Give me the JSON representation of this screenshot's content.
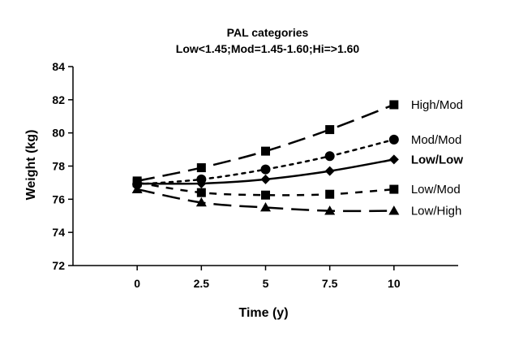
{
  "chart_data": {
    "type": "line",
    "title": "PAL categories",
    "subtitle": "Low<1.45;Mod=1.45-1.60;Hi=>1.60",
    "xlabel": "Time (y)",
    "ylabel": "Weight (kg)",
    "xlim": [
      -2.5,
      12.5
    ],
    "ylim": [
      72,
      84
    ],
    "x_ticks": [
      "0",
      "2.5",
      "5",
      "7.5",
      "10"
    ],
    "x_tick_values": [
      0,
      2.5,
      5,
      7.5,
      10
    ],
    "y_ticks": [
      "72",
      "74",
      "76",
      "78",
      "80",
      "82",
      "84"
    ],
    "y_tick_values": [
      72,
      74,
      76,
      78,
      80,
      82,
      84
    ],
    "grid": false,
    "x": [
      0,
      2.5,
      5,
      7.5,
      10
    ],
    "series": [
      {
        "name": "High/Mod",
        "values": [
          77.1,
          77.9,
          78.9,
          80.2,
          81.7
        ],
        "marker": "square",
        "line_style": "long-dash",
        "label_bold": false
      },
      {
        "name": "Mod/Mod",
        "values": [
          76.9,
          77.2,
          77.8,
          78.6,
          79.6
        ],
        "marker": "circle",
        "line_style": "dotted",
        "label_bold": false
      },
      {
        "name": "Low/Low",
        "values": [
          76.95,
          76.95,
          77.2,
          77.7,
          78.4
        ],
        "marker": "diamond",
        "line_style": "solid",
        "label_bold": true
      },
      {
        "name": "Low/Mod",
        "values": [
          77.0,
          76.4,
          76.25,
          76.3,
          76.6
        ],
        "marker": "square",
        "line_style": "short-dash",
        "label_bold": false
      },
      {
        "name": "Low/High",
        "values": [
          76.6,
          75.8,
          75.5,
          75.3,
          75.3
        ],
        "marker": "triangle",
        "line_style": "long-dash",
        "label_bold": false
      }
    ],
    "colors": {
      "line": "#000000",
      "background": "#ffffff"
    }
  }
}
